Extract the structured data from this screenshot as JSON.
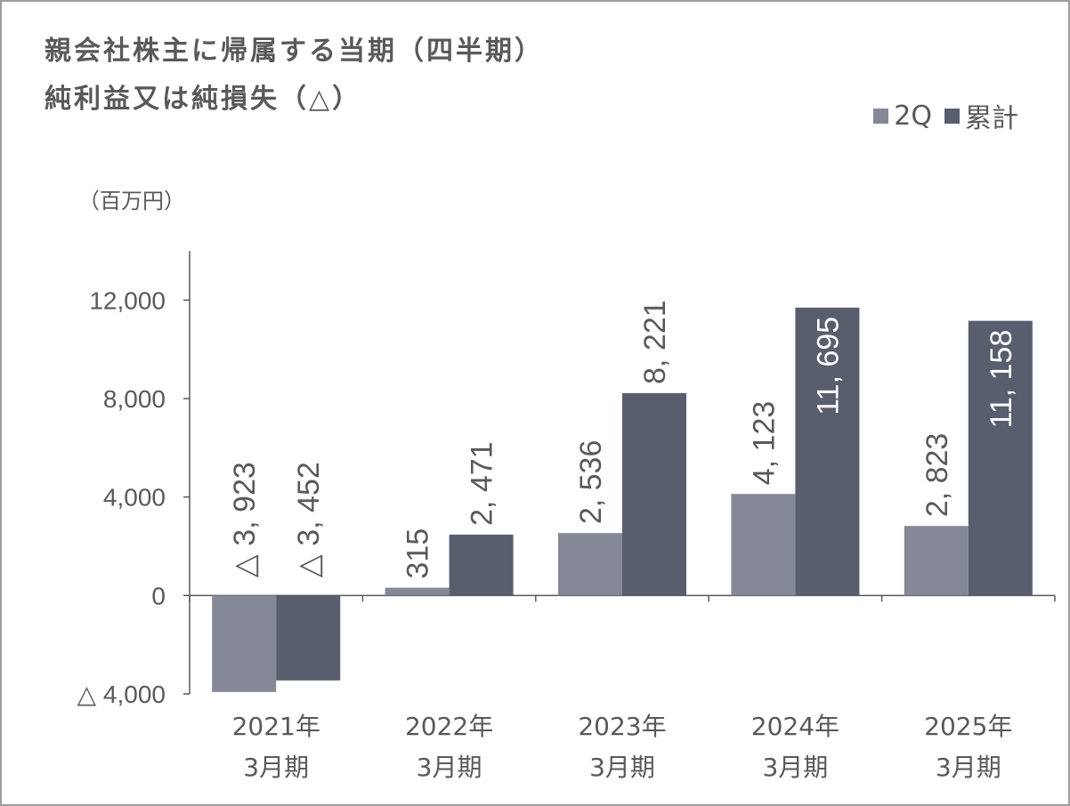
{
  "title": {
    "line1": "親会社株主に帰属する当期（四半期）",
    "line2": "純利益又は純損失（△）"
  },
  "unit_label": "（百万円）",
  "colors": {
    "q2": "#858896",
    "cumulative": "#595e6e",
    "axis": "#595959",
    "text": "#595959",
    "inside_label": "#ffffff"
  },
  "chart_data": {
    "type": "bar",
    "categories": [
      [
        "2021年",
        "3月期"
      ],
      [
        "2022年",
        "3月期"
      ],
      [
        "2023年",
        "3月期"
      ],
      [
        "2024年",
        "3月期"
      ],
      [
        "2025年",
        "3月期"
      ]
    ],
    "series": [
      {
        "name": "2Q",
        "values": [
          -3923,
          315,
          2536,
          4123,
          2823
        ],
        "labels": [
          "△ 3, 923",
          "315",
          "2, 536",
          "4, 123",
          "2, 823"
        ]
      },
      {
        "name": "累計",
        "values": [
          -3452,
          2471,
          8221,
          11695,
          11158
        ],
        "labels": [
          "△ 3, 452",
          "2, 471",
          "8, 221",
          "11, 695",
          "11, 158"
        ]
      }
    ],
    "ylim": [
      -4000,
      14000
    ],
    "yticks": [
      -4000,
      0,
      4000,
      8000,
      12000
    ],
    "ytick_labels": [
      "△ 4,000",
      "0",
      "4,000",
      "8,000",
      "12,000"
    ],
    "legend_position": "top-right",
    "grid": false
  }
}
